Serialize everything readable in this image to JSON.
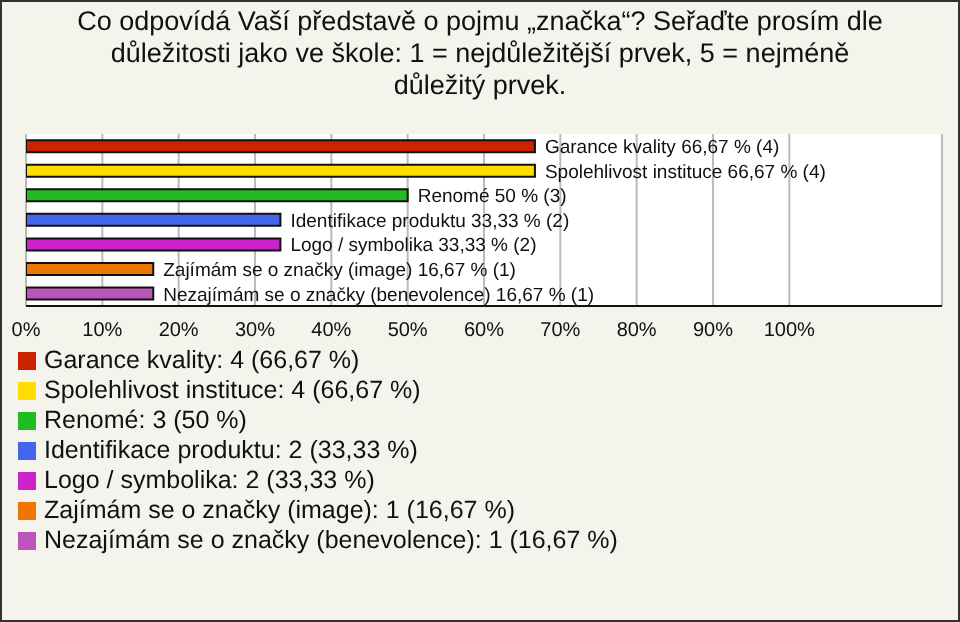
{
  "chart_data": {
    "type": "bar",
    "orientation": "horizontal",
    "stacked": true,
    "title": "Co odpovídá Vaší představě o pojmu „značka“? Seřaďte prosím dle důležitosti jako ve škole: 1 = nejdůležitější prvek, 5 = nejméně důležitý prvek.",
    "categories": [
      null,
      null,
      null,
      null,
      null,
      null,
      null
    ],
    "series": [
      {
        "name": "Garance kvality: 4 (66,67 %)",
        "color": "#cc2200",
        "values": [
          66.67,
          null,
          null,
          null,
          null,
          null,
          null
        ],
        "value_labels": [
          "Garance kvality 66,67 % (4)",
          null,
          null,
          null,
          null,
          null,
          null
        ]
      },
      {
        "name": "Spolehlivost instituce: 4 (66,67 %)",
        "color": "#ffdd00",
        "values": [
          null,
          66.67,
          null,
          null,
          null,
          null,
          null
        ],
        "value_labels": [
          null,
          "Spolehlivost instituce 66,67 % (4)",
          null,
          null,
          null,
          null,
          null
        ]
      },
      {
        "name": "Renomé: 3 (50 %)",
        "color": "#22bb22",
        "values": [
          null,
          null,
          50,
          null,
          null,
          null,
          null
        ],
        "value_labels": [
          null,
          null,
          "Renomé 50 % (3)",
          null,
          null,
          null,
          null
        ]
      },
      {
        "name": "Identifikace produktu: 2 (33,33 %)",
        "color": "#4466ee",
        "values": [
          null,
          null,
          null,
          33.33,
          null,
          null,
          null
        ],
        "value_labels": [
          null,
          null,
          null,
          "Identifikace produktu 33,33 % (2)",
          null,
          null,
          null
        ]
      },
      {
        "name": "Logo / symbolika: 2 (33,33 %)",
        "color": "#cc22cc",
        "values": [
          null,
          null,
          null,
          null,
          33.33,
          null,
          null
        ],
        "value_labels": [
          null,
          null,
          null,
          null,
          "Logo / symbolika 33,33 % (2)",
          null,
          null
        ]
      },
      {
        "name": "Zajímám se o značky (image): 1 (16,67 %)",
        "color": "#ee7700",
        "values": [
          null,
          null,
          null,
          null,
          null,
          16.67,
          null
        ],
        "value_labels": [
          null,
          null,
          null,
          null,
          null,
          "Zajímám se o značky (image) 16,67 % (1)",
          null
        ]
      },
      {
        "name": "Nezajímám se o značky (benevolence): 1 (16,67 %)",
        "color": "#bb55bb",
        "values": [
          null,
          null,
          null,
          null,
          null,
          null,
          16.67
        ],
        "value_labels": [
          null,
          null,
          null,
          null,
          null,
          null,
          "Nezajímám se o značky (benevolence) 16,67 % (1)"
        ]
      }
    ],
    "xlim": [
      0,
      120
    ],
    "xticks": [
      {
        "value": 0,
        "label": "0%"
      },
      {
        "value": 10,
        "label": "10%"
      },
      {
        "value": 20,
        "label": "20%"
      },
      {
        "value": 30,
        "label": "30%"
      },
      {
        "value": 40,
        "label": "40%"
      },
      {
        "value": 50,
        "label": "50%"
      },
      {
        "value": 60,
        "label": "60%"
      },
      {
        "value": 70,
        "label": "70%"
      },
      {
        "value": 80,
        "label": "80%"
      },
      {
        "value": 90,
        "label": "90%"
      },
      {
        "value": 100,
        "label": "100%"
      }
    ],
    "grid": "x",
    "legend": "bottom"
  }
}
